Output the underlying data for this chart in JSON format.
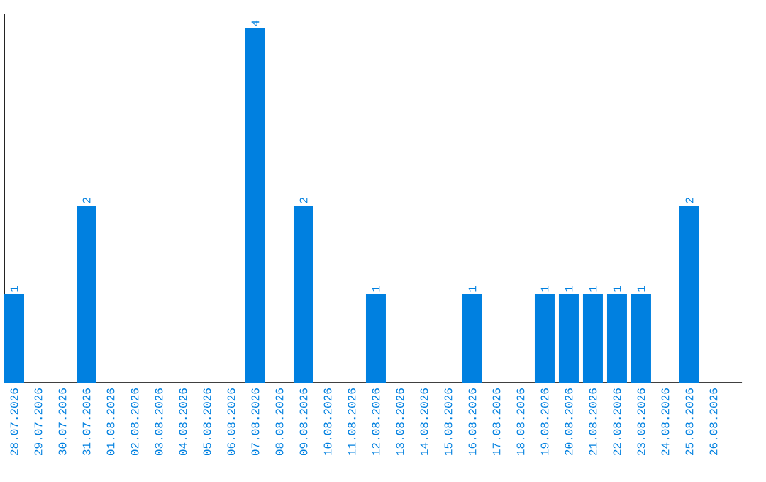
{
  "chart_data": {
    "type": "bar",
    "categories": [
      "28.07.2026",
      "29.07.2026",
      "30.07.2026",
      "31.07.2026",
      "01.08.2026",
      "02.08.2026",
      "03.08.2026",
      "04.08.2026",
      "05.08.2026",
      "06.08.2026",
      "07.08.2026",
      "08.08.2026",
      "09.08.2026",
      "10.08.2026",
      "11.08.2026",
      "12.08.2026",
      "13.08.2026",
      "14.08.2026",
      "15.08.2026",
      "16.08.2026",
      "17.08.2026",
      "18.08.2026",
      "19.08.2026",
      "20.08.2026",
      "21.08.2026",
      "22.08.2026",
      "23.08.2026",
      "24.08.2026",
      "25.08.2026",
      "26.08.2026"
    ],
    "values": [
      1,
      0,
      0,
      2,
      0,
      0,
      0,
      0,
      0,
      0,
      4,
      0,
      2,
      0,
      0,
      1,
      0,
      0,
      0,
      1,
      0,
      0,
      1,
      1,
      1,
      1,
      1,
      0,
      2,
      0
    ],
    "value_labels": [
      "1",
      null,
      null,
      "2",
      null,
      null,
      null,
      null,
      null,
      null,
      "4",
      null,
      "2",
      null,
      null,
      "1",
      null,
      null,
      null,
      "1",
      null,
      null,
      "1",
      "1",
      "1",
      "1",
      "1",
      null,
      "2",
      null
    ],
    "color": "#0080e0",
    "ylim": [
      0,
      4.16
    ],
    "tick_labels": "x"
  }
}
